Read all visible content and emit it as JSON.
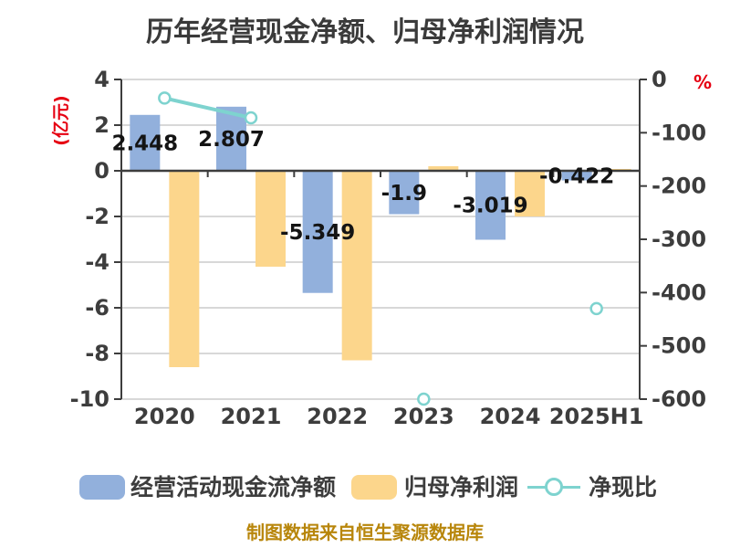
{
  "title": "历年经营现金净额、归母净利润情况",
  "footer": "制图数据来自恒生聚源数据库",
  "colors": {
    "cash_flow_bar": "#92b0dc",
    "net_profit_bar": "#fcd68c",
    "ratio_line": "#7ed3cf",
    "marker_fill": "#ffffff",
    "axis_line": "#3d3d3d",
    "grid_line": "#d8d8d8",
    "axis_text": "#3d3d3d",
    "unit_label": "#e60012",
    "data_label": "#141414",
    "footer_text": "#b8860b"
  },
  "chart_data": {
    "type": "bar",
    "subtype": "grouped-bars-with-line",
    "categories": [
      "2020",
      "2021",
      "2022",
      "2023",
      "2024",
      "2025H1"
    ],
    "series": [
      {
        "name": "经营活动现金流净额",
        "type": "bar",
        "axis": "left",
        "values": [
          2.448,
          2.807,
          -5.349,
          -1.9,
          -3.019,
          -0.422
        ],
        "labels": [
          "2.448",
          "2.807",
          "-5.349",
          "-1.9",
          "-3.019",
          "-0.422"
        ]
      },
      {
        "name": "归母净利润",
        "type": "bar",
        "axis": "left",
        "values": [
          -8.6,
          -4.2,
          -8.3,
          0.2,
          -2.0,
          0.08
        ],
        "labels": []
      },
      {
        "name": "净现比",
        "type": "line",
        "axis": "right",
        "values": [
          -35,
          -72,
          null,
          -600,
          null,
          -430
        ]
      }
    ],
    "left_axis": {
      "label": "(亿元)",
      "min": -10,
      "max": 4,
      "ticks": [
        4,
        2,
        0,
        -2,
        -4,
        -6,
        -8,
        -10
      ]
    },
    "right_axis": {
      "label": "%",
      "min": -600,
      "max": 0,
      "ticks": [
        0,
        -100,
        -200,
        -300,
        -400,
        -500,
        -600
      ]
    },
    "grid": true,
    "legend_position": "bottom"
  },
  "legend": {
    "items": [
      {
        "label": "经营活动现金流净额",
        "swatch": "blue-bar"
      },
      {
        "label": "归母净利润",
        "swatch": "yellow-bar"
      },
      {
        "label": "净现比",
        "swatch": "line-marker"
      }
    ]
  }
}
